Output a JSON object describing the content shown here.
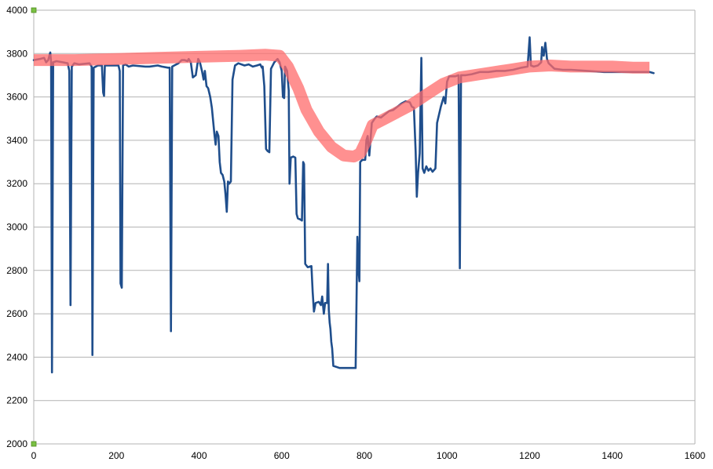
{
  "chart_data": {
    "type": "line",
    "title": "",
    "xlabel": "",
    "ylabel": "",
    "xlim": [
      0,
      1600
    ],
    "ylim": [
      2000,
      4000
    ],
    "x_ticks": [
      0,
      200,
      400,
      600,
      800,
      1000,
      1200,
      1400,
      1600
    ],
    "y_ticks": [
      2000,
      2200,
      2400,
      2600,
      2800,
      3000,
      3200,
      3400,
      3600,
      3800,
      4000
    ],
    "x_tick_labels": [
      "0",
      "200",
      "400",
      "600",
      "800",
      "1000",
      "1200",
      "1400",
      "1600"
    ],
    "y_tick_labels": [
      "2000",
      "2200",
      "2400",
      "2600",
      "2800",
      "3000",
      "3200",
      "3400",
      "3600",
      "3800",
      "4000"
    ],
    "grid": "horizontal",
    "legend": "none",
    "colors": {
      "raw_series": "#1f4e8c",
      "smoothed_overlay": "#ff6b6b",
      "grid": "#b3b3b3",
      "axis": "#b3b3b3",
      "corner_marker": "#7ac143"
    },
    "series": [
      {
        "style": "thin",
        "points": [
          [
            0,
            3770
          ],
          [
            15,
            3775
          ],
          [
            25,
            3780
          ],
          [
            30,
            3760
          ],
          [
            35,
            3770
          ],
          [
            40,
            3805
          ],
          [
            42,
            3760
          ],
          [
            44,
            2330
          ],
          [
            47,
            3760
          ],
          [
            55,
            3765
          ],
          [
            70,
            3760
          ],
          [
            82,
            3755
          ],
          [
            86,
            3720
          ],
          [
            89,
            2640
          ],
          [
            92,
            3740
          ],
          [
            98,
            3755
          ],
          [
            110,
            3750
          ],
          [
            135,
            3755
          ],
          [
            140,
            3740
          ],
          [
            142,
            2410
          ],
          [
            145,
            3735
          ],
          [
            155,
            3745
          ],
          [
            165,
            3745
          ],
          [
            168,
            3620
          ],
          [
            170,
            3605
          ],
          [
            172,
            3745
          ],
          [
            178,
            3745
          ],
          [
            205,
            3745
          ],
          [
            208,
            3720
          ],
          [
            210,
            2740
          ],
          [
            213,
            2720
          ],
          [
            216,
            3745
          ],
          [
            222,
            3750
          ],
          [
            230,
            3740
          ],
          [
            240,
            3745
          ],
          [
            270,
            3740
          ],
          [
            280,
            3740
          ],
          [
            300,
            3745
          ],
          [
            310,
            3740
          ],
          [
            325,
            3735
          ],
          [
            329,
            3735
          ],
          [
            332,
            2520
          ],
          [
            335,
            3740
          ],
          [
            340,
            3745
          ],
          [
            350,
            3755
          ],
          [
            358,
            3770
          ],
          [
            365,
            3770
          ],
          [
            372,
            3765
          ],
          [
            375,
            3775
          ],
          [
            380,
            3760
          ],
          [
            385,
            3690
          ],
          [
            392,
            3700
          ],
          [
            398,
            3775
          ],
          [
            402,
            3760
          ],
          [
            407,
            3720
          ],
          [
            411,
            3680
          ],
          [
            414,
            3720
          ],
          [
            418,
            3650
          ],
          [
            422,
            3640
          ],
          [
            427,
            3600
          ],
          [
            431,
            3550
          ],
          [
            434,
            3490
          ],
          [
            437,
            3430
          ],
          [
            440,
            3380
          ],
          [
            443,
            3440
          ],
          [
            447,
            3420
          ],
          [
            450,
            3300
          ],
          [
            453,
            3250
          ],
          [
            457,
            3240
          ],
          [
            461,
            3210
          ],
          [
            464,
            3150
          ],
          [
            467,
            3070
          ],
          [
            470,
            3210
          ],
          [
            473,
            3200
          ],
          [
            477,
            3210
          ],
          [
            481,
            3680
          ],
          [
            487,
            3745
          ],
          [
            495,
            3755
          ],
          [
            510,
            3745
          ],
          [
            520,
            3750
          ],
          [
            530,
            3740
          ],
          [
            540,
            3745
          ],
          [
            548,
            3750
          ],
          [
            552,
            3735
          ],
          [
            554,
            3740
          ],
          [
            558,
            3650
          ],
          [
            562,
            3360
          ],
          [
            566,
            3350
          ],
          [
            570,
            3345
          ],
          [
            574,
            3730
          ],
          [
            582,
            3760
          ],
          [
            590,
            3775
          ],
          [
            595,
            3760
          ],
          [
            600,
            3720
          ],
          [
            603,
            3600
          ],
          [
            606,
            3595
          ],
          [
            608,
            3740
          ],
          [
            613,
            3720
          ],
          [
            617,
            3630
          ],
          [
            619,
            3200
          ],
          [
            622,
            3320
          ],
          [
            628,
            3325
          ],
          [
            633,
            3320
          ],
          [
            636,
            3060
          ],
          [
            639,
            3040
          ],
          [
            645,
            3035
          ],
          [
            649,
            3030
          ],
          [
            652,
            3300
          ],
          [
            654,
            3290
          ],
          [
            657,
            2830
          ],
          [
            663,
            2815
          ],
          [
            672,
            2820
          ],
          [
            675,
            2700
          ],
          [
            678,
            2610
          ],
          [
            682,
            2650
          ],
          [
            690,
            2655
          ],
          [
            695,
            2640
          ],
          [
            698,
            2680
          ],
          [
            702,
            2600
          ],
          [
            705,
            2650
          ],
          [
            710,
            2650
          ],
          [
            712,
            2830
          ],
          [
            714,
            2620
          ],
          [
            716,
            2560
          ],
          [
            718,
            2530
          ],
          [
            720,
            2470
          ],
          [
            722,
            2440
          ],
          [
            725,
            2360
          ],
          [
            740,
            2350
          ],
          [
            760,
            2350
          ],
          [
            779,
            2350
          ],
          [
            783,
            2955
          ],
          [
            786,
            2800
          ],
          [
            788,
            2750
          ],
          [
            790,
            3300
          ],
          [
            795,
            3310
          ],
          [
            802,
            3310
          ],
          [
            805,
            3400
          ],
          [
            808,
            3420
          ],
          [
            812,
            3330
          ],
          [
            818,
            3480
          ],
          [
            825,
            3500
          ],
          [
            830,
            3510
          ],
          [
            840,
            3505
          ],
          [
            850,
            3520
          ],
          [
            860,
            3535
          ],
          [
            870,
            3540
          ],
          [
            880,
            3555
          ],
          [
            890,
            3570
          ],
          [
            900,
            3580
          ],
          [
            910,
            3575
          ],
          [
            915,
            3555
          ],
          [
            920,
            3550
          ],
          [
            924,
            3350
          ],
          [
            927,
            3140
          ],
          [
            930,
            3250
          ],
          [
            934,
            3340
          ],
          [
            938,
            3780
          ],
          [
            941,
            3270
          ],
          [
            945,
            3250
          ],
          [
            950,
            3280
          ],
          [
            955,
            3260
          ],
          [
            960,
            3270
          ],
          [
            965,
            3255
          ],
          [
            972,
            3270
          ],
          [
            976,
            3480
          ],
          [
            985,
            3555
          ],
          [
            992,
            3600
          ],
          [
            996,
            3570
          ],
          [
            1000,
            3670
          ],
          [
            1005,
            3695
          ],
          [
            1010,
            3695
          ],
          [
            1020,
            3695
          ],
          [
            1028,
            3700
          ],
          [
            1031,
            2810
          ],
          [
            1034,
            3700
          ],
          [
            1045,
            3700
          ],
          [
            1060,
            3705
          ],
          [
            1080,
            3715
          ],
          [
            1100,
            3715
          ],
          [
            1120,
            3720
          ],
          [
            1140,
            3720
          ],
          [
            1160,
            3725
          ],
          [
            1180,
            3735
          ],
          [
            1195,
            3740
          ],
          [
            1200,
            3875
          ],
          [
            1203,
            3745
          ],
          [
            1210,
            3740
          ],
          [
            1220,
            3745
          ],
          [
            1228,
            3760
          ],
          [
            1230,
            3830
          ],
          [
            1234,
            3790
          ],
          [
            1238,
            3850
          ],
          [
            1242,
            3775
          ],
          [
            1246,
            3755
          ],
          [
            1260,
            3730
          ],
          [
            1280,
            3725
          ],
          [
            1300,
            3725
          ],
          [
            1340,
            3720
          ],
          [
            1380,
            3715
          ],
          [
            1420,
            3715
          ],
          [
            1460,
            3715
          ],
          [
            1490,
            3715
          ],
          [
            1500,
            3710
          ]
        ]
      },
      {
        "style": "thick-translucent",
        "points": [
          [
            0,
            3770
          ],
          [
            100,
            3770
          ],
          [
            200,
            3775
          ],
          [
            300,
            3780
          ],
          [
            400,
            3785
          ],
          [
            500,
            3790
          ],
          [
            560,
            3795
          ],
          [
            595,
            3790
          ],
          [
            615,
            3740
          ],
          [
            640,
            3640
          ],
          [
            660,
            3540
          ],
          [
            690,
            3440
          ],
          [
            720,
            3370
          ],
          [
            750,
            3330
          ],
          [
            775,
            3325
          ],
          [
            790,
            3340
          ],
          [
            805,
            3400
          ],
          [
            820,
            3470
          ],
          [
            850,
            3500
          ],
          [
            880,
            3530
          ],
          [
            910,
            3560
          ],
          [
            950,
            3610
          ],
          [
            990,
            3660
          ],
          [
            1030,
            3690
          ],
          [
            1080,
            3705
          ],
          [
            1150,
            3725
          ],
          [
            1200,
            3740
          ],
          [
            1250,
            3745
          ],
          [
            1300,
            3740
          ],
          [
            1350,
            3740
          ],
          [
            1400,
            3740
          ],
          [
            1450,
            3735
          ],
          [
            1490,
            3735
          ]
        ]
      }
    ]
  }
}
